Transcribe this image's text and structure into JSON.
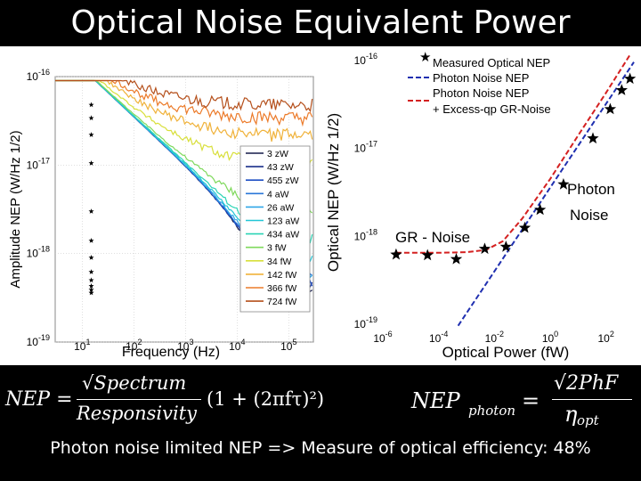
{
  "slide": {
    "title": "Optical Noise Equivalent Power",
    "footer": "Photon noise limited NEP => Measure of optical efficiency: 48%"
  },
  "formulas": {
    "nep_lhs": "NEP =",
    "nep_num": "√Spectrum",
    "nep_den": "Responsivity",
    "nep_factor": "(1 + (2πfτ)²)",
    "photon_lhs": "NEP",
    "photon_sub": "photon",
    "photon_eq": "=",
    "photon_num": "√2PhF",
    "photon_den": "η",
    "photon_den_sub": "opt"
  },
  "chart_data": [
    {
      "type": "line",
      "title": "",
      "xlabel": "Frequency (Hz)",
      "ylabel": "Amplitude NEP (W/Hz 1/2)",
      "xscale": "log",
      "yscale": "log",
      "xlim": [
        3,
        300000
      ],
      "ylim": [
        1e-19,
        1e-16
      ],
      "x_ticks": [
        "10^1",
        "10^2",
        "10^3",
        "10^4",
        "10^5"
      ],
      "y_ticks": [
        "10^-16",
        "10^-17",
        "10^-18",
        "10^-19"
      ],
      "legend_position": "right",
      "legend": [
        "3 zW",
        "43 zW",
        "455 zW",
        "4 aW",
        "26 aW",
        "123 aW",
        "434 aW",
        "3 fW",
        "34 fW",
        "142 fW",
        "366 fW",
        "724 fW"
      ],
      "series": [
        {
          "name": "3 zW",
          "color": "#151b4a",
          "plateau": 3.6e-19
        },
        {
          "name": "43 zW",
          "color": "#1a2f8a",
          "plateau": 3.9e-19
        },
        {
          "name": "455 zW",
          "color": "#1f4fc4",
          "plateau": 4.3e-19
        },
        {
          "name": "4 aW",
          "color": "#2a77d8",
          "plateau": 5e-19
        },
        {
          "name": "26 aW",
          "color": "#2fa6e8",
          "plateau": 6.2e-19
        },
        {
          "name": "123 aW",
          "color": "#22c6d6",
          "plateau": 9e-19
        },
        {
          "name": "434 aW",
          "color": "#2bd4b5",
          "plateau": 1.4e-18
        },
        {
          "name": "3 fW",
          "color": "#7fd95c",
          "plateau": 3e-18
        },
        {
          "name": "34 fW",
          "color": "#d8df3a",
          "plateau": 1.05e-17
        },
        {
          "name": "142 fW",
          "color": "#f0b23a",
          "plateau": 2.2e-17
        },
        {
          "name": "366 fW",
          "color": "#ec7b2a",
          "plateau": 3.4e-17
        },
        {
          "name": "724 fW",
          "color": "#b5501c",
          "plateau": 4.8e-17
        }
      ]
    },
    {
      "type": "scatter",
      "title": "",
      "xlabel": "Optical Power (fW)",
      "ylabel": "Optical NEP (W/Hz 1/2)",
      "xscale": "log",
      "yscale": "log",
      "xlim": [
        1e-06,
        1000
      ],
      "ylim": [
        1e-19,
        1e-16
      ],
      "x_ticks": [
        "10^-6",
        "10^-4",
        "10^-2",
        "10^0",
        "10^2"
      ],
      "y_ticks": [
        "10^-16",
        "10^-17",
        "10^-18",
        "10^-19"
      ],
      "legend_position": "top-right",
      "legend": [
        "Measured Optical NEP",
        "Photon Noise NEP",
        "Photon Noise NEP + Excess-qp GR-Noise"
      ],
      "annotations": [
        "GR - Noise",
        "Photon Noise"
      ],
      "series": [
        {
          "name": "Measured Optical NEP",
          "marker": "star",
          "color": "#000000",
          "x": [
            3e-06,
            4e-05,
            0.00043,
            0.0045,
            0.026,
            0.123,
            0.434,
            3,
            34,
            142,
            366,
            724
          ],
          "y": [
            6.2e-19,
            6.1e-19,
            5.5e-19,
            7.2e-19,
            7.6e-19,
            1.25e-18,
            2e-18,
            3.9e-18,
            1.3e-17,
            2.8e-17,
            4.6e-17,
            6.2e-17
          ]
        },
        {
          "name": "Photon Noise NEP",
          "style": "dashed",
          "color": "#1f2fb0",
          "x": [
            0.0005,
            1000
          ],
          "y": [
            9.6e-20,
            9.6e-17
          ]
        },
        {
          "name": "Photon Noise NEP + Excess-qp GR-Noise",
          "style": "dashed",
          "color": "#d42020",
          "x": [
            3e-06,
            0.0001,
            0.001,
            0.005,
            0.02,
            0.1,
            1,
            10,
            100,
            724
          ],
          "y": [
            6.5e-19,
            6.5e-19,
            6.6e-19,
            7e-19,
            8.8e-19,
            1.6e-18,
            4.5e-18,
            1.4e-17,
            4.3e-17,
            1.16e-16
          ]
        }
      ]
    }
  ]
}
